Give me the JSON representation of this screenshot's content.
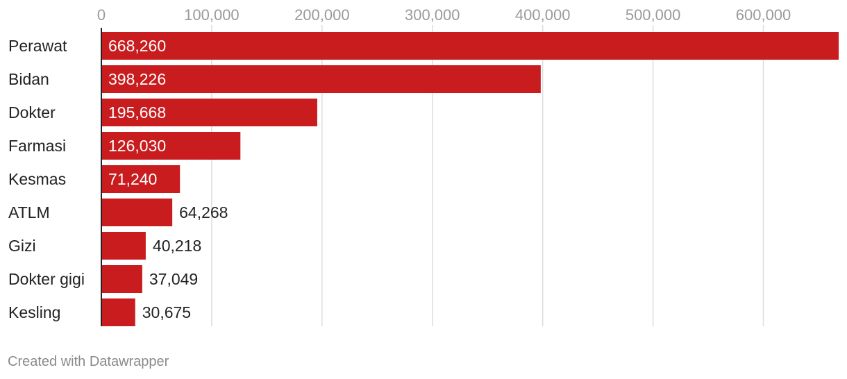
{
  "chart_data": {
    "type": "bar",
    "orientation": "horizontal",
    "categories": [
      "Perawat",
      "Bidan",
      "Dokter",
      "Farmasi",
      "Kesmas",
      "ATLM",
      "Gizi",
      "Dokter gigi",
      "Kesling"
    ],
    "values": [
      668260,
      398226,
      195668,
      126030,
      71240,
      64268,
      40218,
      37049,
      30675
    ],
    "value_labels": [
      "668,260",
      "398,226",
      "195,668",
      "126,030",
      "71,240",
      "64,268",
      "40,218",
      "37,049",
      "30,675"
    ],
    "x_ticks": [
      0,
      100000,
      200000,
      300000,
      400000,
      500000,
      600000
    ],
    "x_tick_labels": [
      "0",
      "100,000",
      "200,000",
      "300,000",
      "400,000",
      "500,000",
      "600,000"
    ],
    "xlim": [
      0,
      668260
    ],
    "grid": true,
    "title": "",
    "xlabel": "",
    "ylabel": ""
  },
  "colors": {
    "bar": "#c91c1e",
    "grid": "#dddddd",
    "axis": "#222222",
    "label_inside": "#ffffff",
    "label_outside": "#222222"
  },
  "footer": {
    "credit": "Created with Datawrapper"
  }
}
